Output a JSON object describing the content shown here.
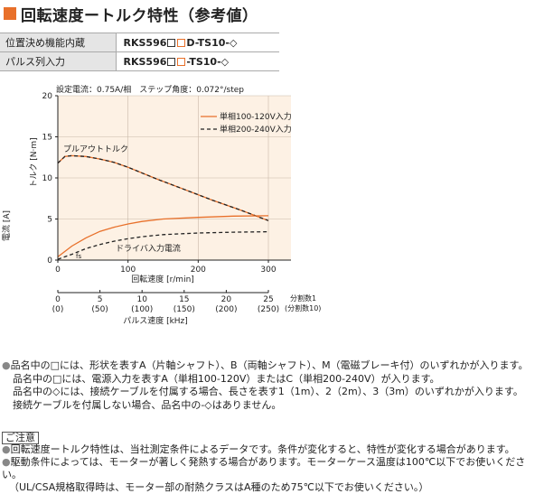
{
  "title": "回転速度ートルク特性（参考値）",
  "models": [
    {
      "label": "位置決め機能内蔵",
      "model_prefix": "RKS596",
      "model_suffix": "D-TS10-◇"
    },
    {
      "label": "パルス列入力",
      "model_prefix": "RKS596",
      "model_suffix": "-TS10-◇"
    }
  ],
  "chart_data": {
    "type": "line",
    "conditions": "設定電流：0.75A/相　ステップ角度：0.072°/step",
    "xlabel": "回転速度 [r/min]",
    "ylabel_torque": "トルク [N·m]",
    "ylabel_current": "電流 [A]",
    "x_ticks": [
      "0",
      "100",
      "200",
      "300"
    ],
    "xlim": [
      0,
      300
    ],
    "y_ticks": [
      "0",
      "5",
      "10",
      "15",
      "20"
    ],
    "ylim": [
      0,
      20
    ],
    "pulse_ticks": [
      "0",
      "5",
      "10",
      "15",
      "20",
      "25"
    ],
    "pulse_ticks_sub": [
      "(0)",
      "(50)",
      "(100)",
      "(150)",
      "(200)",
      "(250)"
    ],
    "pulse_axis_label": "パルス速度 [kHz]",
    "pulse_note1": "分割数1",
    "pulse_note2": "(分割数10)",
    "label_pullout": "プルアウトトルク",
    "label_current": "ドライバ入力電流",
    "label_fs": "fs",
    "legend": [
      {
        "name": "単相100-120V入力",
        "color": "#e8702a",
        "dash": false
      },
      {
        "name": "単相200-240V入力",
        "color": "#222222",
        "dash": true
      }
    ],
    "torque_100": [
      [
        0,
        11.8
      ],
      [
        10,
        12.6
      ],
      [
        20,
        12.7
      ],
      [
        40,
        12.6
      ],
      [
        60,
        12.3
      ],
      [
        80,
        11.9
      ],
      [
        100,
        11.3
      ],
      [
        140,
        9.9
      ],
      [
        180,
        8.6
      ],
      [
        220,
        7.3
      ],
      [
        260,
        6.1
      ],
      [
        300,
        4.8
      ]
    ],
    "torque_200": [
      [
        0,
        11.8
      ],
      [
        10,
        12.6
      ],
      [
        20,
        12.7
      ],
      [
        40,
        12.6
      ],
      [
        60,
        12.3
      ],
      [
        80,
        11.9
      ],
      [
        100,
        11.3
      ],
      [
        140,
        9.9
      ],
      [
        180,
        8.6
      ],
      [
        220,
        7.3
      ],
      [
        260,
        6.1
      ],
      [
        300,
        4.8
      ]
    ],
    "current_100": [
      [
        0,
        0.4
      ],
      [
        20,
        1.7
      ],
      [
        40,
        2.7
      ],
      [
        60,
        3.5
      ],
      [
        80,
        4.0
      ],
      [
        100,
        4.4
      ],
      [
        120,
        4.7
      ],
      [
        150,
        5.0
      ],
      [
        200,
        5.2
      ],
      [
        250,
        5.35
      ],
      [
        300,
        5.4
      ]
    ],
    "current_200": [
      [
        0,
        0.1
      ],
      [
        20,
        0.7
      ],
      [
        40,
        1.4
      ],
      [
        60,
        1.9
      ],
      [
        80,
        2.3
      ],
      [
        100,
        2.6
      ],
      [
        120,
        2.85
      ],
      [
        150,
        3.1
      ],
      [
        200,
        3.3
      ],
      [
        250,
        3.4
      ],
      [
        300,
        3.45
      ]
    ]
  },
  "notes": [
    "品名中の□には、形状を表すA（片軸シャフト）、B（両軸シャフト）、M（電磁ブレーキ付）のいずれかが入ります。",
    "品名中の□には、電源入力を表すA（単相100-120V）またはC（単相200-240V）が入ります。",
    "品名中の◇には、接続ケーブルを付属する場合、長さを表す1（1m）、2（2m）、3（3m）のいずれかが入ります。",
    "接続ケーブルを付属しない場合、品名中の-◇はありません。"
  ],
  "caution_label": "ご注意",
  "caution": [
    "回転速度ートルク特性は、当社測定条件によるデータです。条件が変化すると、特性が変化する場合があります。",
    "駆動条件によっては、モーターが著しく発熱する場合があります。モーターケース温度は100℃以下でお使いください。",
    "（UL/CSA規格取得時は、モーター部の耐熱クラスはA種のため75℃以下でお使いください。）"
  ]
}
